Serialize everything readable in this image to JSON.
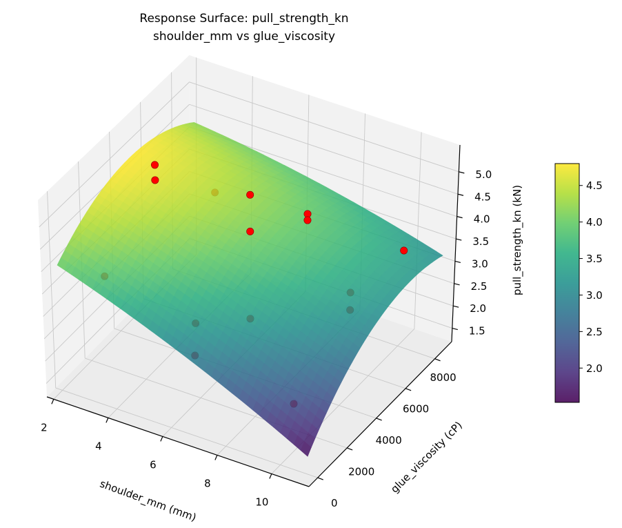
{
  "chart_data": {
    "type": "surface3d",
    "title": "Response Surface: pull_strength_kn",
    "subtitle": "shoulder_mm vs glue_viscosity",
    "xlabel": "shoulder_mm (mm)",
    "ylabel": "glue_viscosity (cP)",
    "zlabel": "pull_strength_kn (kN)",
    "xlim": [
      1.75,
      11.37
    ],
    "ylim": [
      -600,
      9150
    ],
    "zlim": [
      1.2,
      5.6
    ],
    "xticks": [
      "2",
      "4",
      "6",
      "8",
      "10"
    ],
    "yticks": [
      "0",
      "2000",
      "4000",
      "6000",
      "8000"
    ],
    "zticks": [
      "1.5",
      "2.0",
      "2.5",
      "3.0",
      "3.5",
      "4.0",
      "4.5",
      "5.0"
    ],
    "grid": true,
    "colormap": "viridis",
    "surface": {
      "x_range": [
        2,
        11
      ],
      "y_range": [
        0,
        9000
      ],
      "model": "z = c0 + c1*v + c2*v^2 + c3*u + c4*u^2 + c5*u*v, u=(x-2)/9, v=y/9000",
      "coefficients": [
        4.0,
        3.0,
        -2.8,
        -1.9,
        -0.5,
        1.3
      ],
      "alpha": 0.85
    },
    "points": [
      {
        "x": 3.2,
        "y": 4275,
        "z": 5.07
      },
      {
        "x": 3.2,
        "y": 4275,
        "z": 4.73
      },
      {
        "x": 4.0,
        "y": 6710,
        "z": 3.81
      },
      {
        "x": 6.6,
        "y": 4275,
        "z": 5.11
      },
      {
        "x": 6.6,
        "y": 4275,
        "z": 4.29
      },
      {
        "x": 6.6,
        "y": 4275,
        "z": 2.34
      },
      {
        "x": 8.65,
        "y": 4275,
        "z": 5.11
      },
      {
        "x": 8.65,
        "y": 4275,
        "z": 4.97
      },
      {
        "x": 10.8,
        "y": 6710,
        "z": 3.93
      },
      {
        "x": 2.0,
        "y": 3010,
        "z": 2.75
      },
      {
        "x": 8.15,
        "y": 8175,
        "z": 1.95
      },
      {
        "x": 8.15,
        "y": 8175,
        "z": 1.56
      },
      {
        "x": 4.6,
        "y": 4275,
        "z": 1.82
      },
      {
        "x": 5.9,
        "y": 1840,
        "z": 2.18
      },
      {
        "x": 9.5,
        "y": 1840,
        "z": 1.85
      }
    ],
    "point_color": "#ff0000",
    "colorbar": {
      "range": [
        1.53,
        4.8
      ],
      "ticks": [
        "2.0",
        "2.5",
        "3.0",
        "3.5",
        "4.0",
        "4.5"
      ]
    }
  }
}
